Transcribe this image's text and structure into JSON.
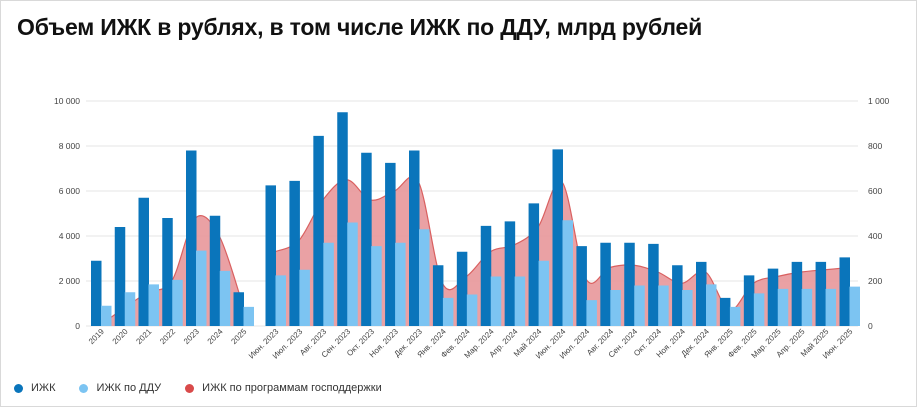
{
  "title": "Объем ИЖК в рублях, в том числе ИЖК по ДДУ, млрд рублей",
  "colors": {
    "izhk": "#0a75bb",
    "ddu": "#7cc4f2",
    "gov": "#d96060",
    "gov_fill": "#e8979a",
    "grid": "#e6e6e6",
    "axis_text": "#444444"
  },
  "legend": [
    {
      "label": "ИЖК",
      "color": "#0a75bb"
    },
    {
      "label": "ИЖК по ДДУ",
      "color": "#7cc4f2"
    },
    {
      "label": "ИЖК по программам господдержки",
      "color": "#d94a4a"
    }
  ],
  "chart_data": {
    "type": "bar",
    "left_axis": {
      "ylim": [
        0,
        10000
      ],
      "ticks": [
        "0",
        "2 000",
        "4 000",
        "6 000",
        "8 000",
        "10 000"
      ]
    },
    "right_axis": {
      "ylim": [
        0,
        1000
      ],
      "ticks": [
        "0",
        "200",
        "400",
        "600",
        "800",
        "1 000"
      ]
    },
    "groups": [
      {
        "categories": [
          "2019",
          "2020",
          "2021",
          "2022",
          "2023",
          "2024",
          "2025"
        ],
        "izhk": [
          2900,
          4400,
          5700,
          4800,
          7800,
          4900,
          1500
        ],
        "ddu": [
          900,
          1500,
          1850,
          2050,
          3350,
          2450,
          850
        ],
        "gov": [
          5,
          80,
          150,
          200,
          480,
          400,
          90
        ]
      },
      {
        "categories": [
          "Июн. 2023",
          "Июл. 2023",
          "Авг. 2023",
          "Сен. 2023",
          "Окт. 2023",
          "Ноя. 2023",
          "Дек. 2023",
          "Янв. 2024",
          "Фев. 2024",
          "Мар. 2024",
          "Апр. 2024",
          "Май 2024",
          "Июн. 2024",
          "Июл. 2024",
          "Авг. 2024",
          "Сен. 2024",
          "Окт. 2024",
          "Ноя. 2024",
          "Дек. 2024",
          "Янв. 2025",
          "Фев. 2025",
          "Мар. 2025",
          "Апр. 2025",
          "Май 2025",
          "Июн. 2025"
        ],
        "izhk": [
          6250,
          6450,
          8450,
          9500,
          7700,
          7250,
          7800,
          2700,
          3300,
          4450,
          4650,
          5450,
          7850,
          3550,
          3700,
          3700,
          3650,
          2700,
          2850,
          1250,
          2250,
          2550,
          2850,
          2850,
          3050
        ],
        "ddu": [
          2250,
          2500,
          3700,
          4600,
          3550,
          3700,
          4300,
          1250,
          1400,
          2200,
          2200,
          2900,
          4700,
          1150,
          1600,
          1800,
          1800,
          1600,
          1850,
          850,
          1450,
          1650,
          1650,
          1650,
          1750
        ],
        "gov": [
          330,
          380,
          560,
          650,
          560,
          600,
          640,
          190,
          220,
          330,
          360,
          440,
          640,
          210,
          260,
          270,
          240,
          190,
          240,
          70,
          190,
          220,
          240,
          250,
          260
        ]
      }
    ],
    "series_names": [
      "ИЖК",
      "ИЖК по ДДУ",
      "ИЖК по программам господдержки"
    ],
    "legend_position": "bottom-left",
    "grid": true
  }
}
